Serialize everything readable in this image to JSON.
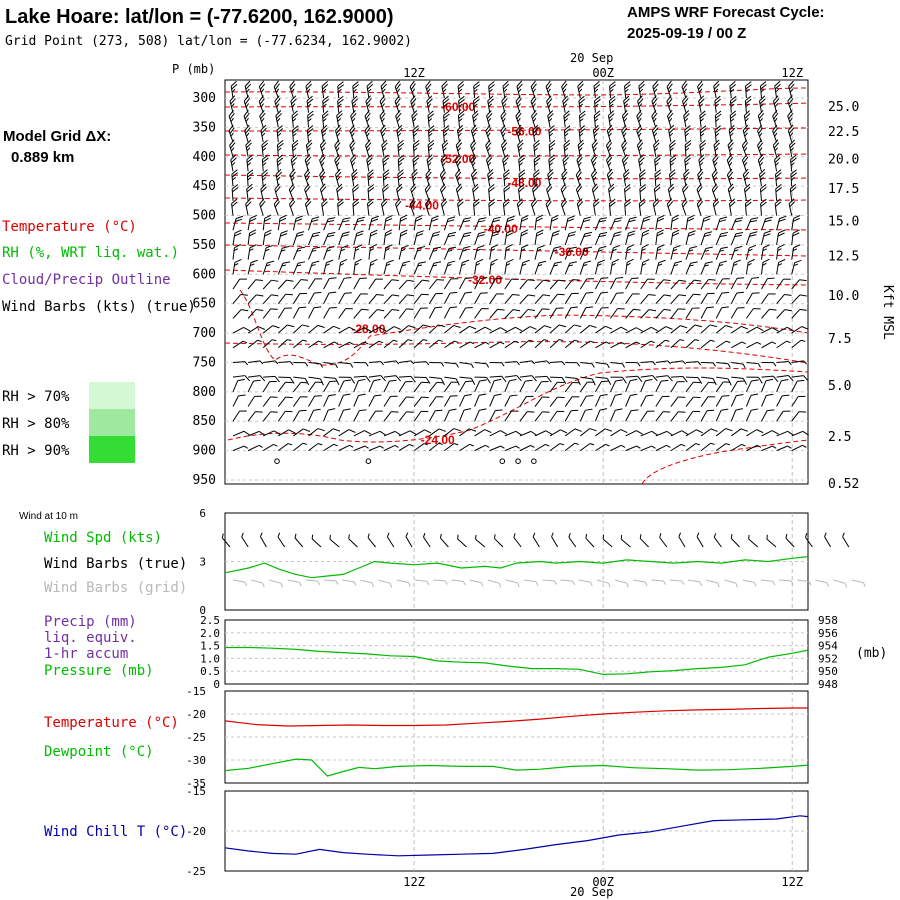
{
  "header": {
    "title": "Lake Hoare:  lat/lon = (-77.6200, 162.9000)",
    "subtitle": "Grid Point (273, 508) lat/lon = (-77.6234, 162.9002)",
    "cycle_label": "AMPS WRF Forecast Cycle:",
    "cycle_value": "2025-09-19 / 00  Z",
    "grid_label": "Model Grid ΔX:",
    "grid_value": "0.889 km"
  },
  "legend": {
    "temperature": "Temperature (°C)",
    "rh": "RH (%, WRT liq. wat.)",
    "cloud": "Cloud/Precip Outline",
    "wind": "Wind Barbs (kts) (true)",
    "rh70": "RH > 70%",
    "rh80": "RH > 80%",
    "rh90": "RH > 90%"
  },
  "colors": {
    "temperature": "#dd0000",
    "rh": "#00bb00",
    "cloud": "#7030a0",
    "windchill": "#0000aa",
    "rh70": "#d4f7d4",
    "rh80": "#9fe89f",
    "rh90": "#33dd33"
  },
  "time_axis": {
    "top_date": "20 Sep",
    "bottom_date": "20 Sep",
    "ticks": [
      {
        "hour": 12,
        "label": "12Z"
      },
      {
        "hour": 24,
        "label": "00Z"
      },
      {
        "hour": 36,
        "label": "12Z"
      }
    ]
  },
  "chart_data": [
    {
      "type": "line",
      "title": "Vertical cross-section (temperature contours and wind barbs)",
      "ylabel": "P (mb)",
      "ylabel_right": "Kft MSL",
      "pressure_levels": [
        300,
        350,
        400,
        450,
        500,
        550,
        600,
        650,
        700,
        750,
        800,
        850,
        900,
        950
      ],
      "height_ticks": [
        {
          "p": 315,
          "label": "25.0"
        },
        {
          "p": 358,
          "label": "22.5"
        },
        {
          "p": 405,
          "label": "20.0"
        },
        {
          "p": 455,
          "label": "17.5"
        },
        {
          "p": 510,
          "label": "15.0"
        },
        {
          "p": 570,
          "label": "12.5"
        },
        {
          "p": 637,
          "label": "10.0"
        },
        {
          "p": 710,
          "label": "7.5"
        },
        {
          "p": 790,
          "label": "5.0"
        },
        {
          "p": 877,
          "label": "2.5"
        },
        {
          "p": 957,
          "label": "0.52"
        }
      ],
      "temperature_labels": [
        {
          "label": "-60.00",
          "hour": 14.8,
          "p": 315
        },
        {
          "label": "-56.00",
          "hour": 19.0,
          "p": 357
        },
        {
          "label": "-52.00",
          "hour": 14.8,
          "p": 404
        },
        {
          "label": "-48.00",
          "hour": 19.0,
          "p": 445
        },
        {
          "label": "-44.00",
          "hour": 12.5,
          "p": 483
        },
        {
          "label": "-40.00",
          "hour": 17.5,
          "p": 523
        },
        {
          "label": "-36.00",
          "hour": 22.0,
          "p": 562
        },
        {
          "label": "-32.00",
          "hour": 16.5,
          "p": 610
        },
        {
          "label": "-28.00",
          "hour": 9.1,
          "p": 693
        },
        {
          "label": "-24.00",
          "hour": 13.5,
          "p": 882
        }
      ],
      "wind_speed_kts": [
        {
          "p": 300,
          "speed": 25
        },
        {
          "p": 325,
          "speed": 25
        },
        {
          "p": 350,
          "speed": 25
        },
        {
          "p": 375,
          "speed": 25
        },
        {
          "p": 400,
          "speed": 25
        },
        {
          "p": 425,
          "speed": 25
        },
        {
          "p": 450,
          "speed": 25
        },
        {
          "p": 475,
          "speed": 20
        },
        {
          "p": 500,
          "speed": 20
        },
        {
          "p": 525,
          "speed": 20
        },
        {
          "p": 550,
          "speed": 20
        },
        {
          "p": 575,
          "speed": 15
        },
        {
          "p": 600,
          "speed": 15
        },
        {
          "p": 625,
          "speed": 10
        },
        {
          "p": 650,
          "speed": 10
        },
        {
          "p": 675,
          "speed": 10
        },
        {
          "p": 700,
          "speed": 10
        },
        {
          "p": 725,
          "speed": 5
        },
        {
          "p": 750,
          "speed": 5
        },
        {
          "p": 775,
          "speed": 10
        },
        {
          "p": 800,
          "speed": 10
        },
        {
          "p": 825,
          "speed": 10
        },
        {
          "p": 850,
          "speed": 10
        },
        {
          "p": 875,
          "speed": 10
        },
        {
          "p": 900,
          "speed": 5
        }
      ],
      "calm_points": [
        {
          "hour": 3.3,
          "p": 918
        },
        {
          "hour": 9.1,
          "p": 918
        },
        {
          "hour": 17.6,
          "p": 918
        },
        {
          "hour": 18.6,
          "p": 918
        },
        {
          "hour": 19.6,
          "p": 918
        }
      ]
    },
    {
      "type": "line",
      "title": "Wind at 10 m",
      "legend": [
        "Wind Spd (kts)",
        "Wind Barbs (true)",
        "Wind Barbs (grid)"
      ],
      "ylim": [
        0,
        6
      ],
      "yticks": [
        "0",
        "3",
        "6"
      ],
      "x": [
        0,
        1.5,
        2.5,
        3.5,
        4.5,
        5.5,
        6.5,
        7.5,
        8.5,
        9.5,
        10.5,
        12,
        13.5,
        15,
        16.5,
        17.5,
        18.5,
        20,
        21,
        22.5,
        24,
        25.5,
        27,
        28.5,
        30,
        31.5,
        33,
        34.5,
        36,
        37
      ],
      "values": [
        2.3,
        2.6,
        2.9,
        2.5,
        2.2,
        2.0,
        2.1,
        2.2,
        2.6,
        3.0,
        2.9,
        2.8,
        2.9,
        2.6,
        2.7,
        2.6,
        2.9,
        3.0,
        2.9,
        3.0,
        2.9,
        3.1,
        3.0,
        2.9,
        3.0,
        2.9,
        3.1,
        3.0,
        3.2,
        3.3
      ]
    },
    {
      "type": "line",
      "title": "Precipitation and pressure",
      "legend": [
        "Precip (mm)",
        "liq. equiv.",
        "1-hr accum",
        "Pressure (mb)"
      ],
      "ylim": [
        0,
        2.5
      ],
      "yticks": [
        "0",
        "0.5",
        "1.0",
        "1.5",
        "2.0",
        "2.5"
      ],
      "ylim_right": [
        948,
        958
      ],
      "yticks_right": [
        "948",
        "950",
        "952",
        "954",
        "956",
        "958"
      ],
      "right_unit": "(mb)",
      "x": [
        0,
        1.5,
        3,
        4.5,
        6,
        7.5,
        9,
        10.5,
        12,
        13.5,
        15,
        16.5,
        18,
        19.5,
        21,
        22.5,
        24,
        25.5,
        27,
        28.5,
        30,
        31.5,
        33,
        34.5,
        36,
        37
      ],
      "pressure_mb": [
        953.7,
        953.7,
        953.6,
        953.4,
        953.1,
        952.9,
        952.7,
        952.4,
        952.3,
        951.6,
        951.4,
        951.3,
        950.8,
        950.4,
        950.4,
        950.3,
        949.5,
        949.6,
        949.9,
        950.1,
        950.4,
        950.6,
        951.0,
        952.2,
        952.8,
        953.3
      ]
    },
    {
      "type": "line",
      "title": "Temperature and dewpoint",
      "legend": [
        "Temperature (°C)",
        "Dewpoint (°C)"
      ],
      "ylim": [
        -35,
        -15
      ],
      "yticks": [
        "-15",
        "-20",
        "-25",
        "-30",
        "-35"
      ],
      "series": [
        {
          "name": "Temperature (°C)",
          "x": [
            0,
            2,
            4,
            6,
            8,
            10,
            12,
            14,
            16,
            18,
            20,
            22,
            24,
            26,
            28,
            30,
            32,
            34,
            36,
            37
          ],
          "values": [
            -21.5,
            -22.3,
            -22.6,
            -22.5,
            -22.4,
            -22.5,
            -22.5,
            -22.4,
            -22.0,
            -21.6,
            -21.1,
            -20.5,
            -20.0,
            -19.6,
            -19.3,
            -19.1,
            -19.0,
            -18.8,
            -18.7,
            -18.7
          ]
        },
        {
          "name": "Dewpoint (°C)",
          "x": [
            0,
            1.5,
            3,
            4.5,
            5.5,
            6.5,
            7.5,
            8.5,
            9.5,
            11,
            13,
            15,
            17,
            18.5,
            20,
            22,
            24,
            26,
            28,
            30,
            32,
            34,
            36,
            37
          ],
          "values": [
            -32.3,
            -31.8,
            -30.8,
            -29.8,
            -30.0,
            -33.5,
            -32.5,
            -31.6,
            -31.9,
            -31.4,
            -31.2,
            -31.4,
            -31.4,
            -32.2,
            -32.0,
            -31.4,
            -31.2,
            -31.7,
            -31.9,
            -32.2,
            -32.1,
            -31.8,
            -31.4,
            -31.1
          ]
        }
      ]
    },
    {
      "type": "line",
      "title": "Wind chill temperature",
      "legend": [
        "Wind Chill T (°C)"
      ],
      "ylim": [
        -25,
        -15
      ],
      "yticks": [
        "-15",
        "-20",
        "-25"
      ],
      "x": [
        0,
        1.5,
        3,
        4.5,
        6,
        7.5,
        9,
        11,
        13,
        15,
        17,
        19,
        21,
        23,
        25,
        27,
        29,
        31,
        33,
        35,
        36.5,
        37
      ],
      "values": [
        -22.1,
        -22.5,
        -22.8,
        -22.9,
        -22.3,
        -22.7,
        -22.9,
        -23.1,
        -23.0,
        -22.9,
        -22.8,
        -22.3,
        -21.7,
        -21.2,
        -20.5,
        -20.1,
        -19.4,
        -18.7,
        -18.6,
        -18.5,
        -18.1,
        -18.2
      ]
    }
  ]
}
